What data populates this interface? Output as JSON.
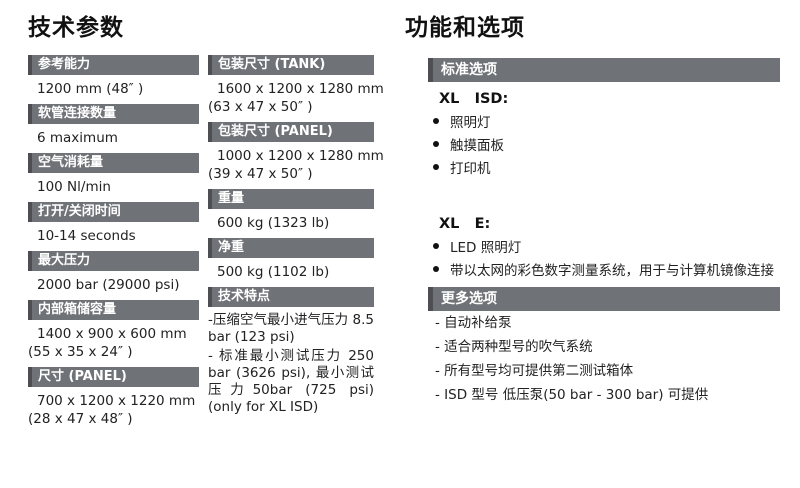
{
  "colors": {
    "bar_background": "#6f7277",
    "bar_left_edge": "#4d4f53",
    "bar_text": "#ffffff",
    "body_text": "#1a1a1a",
    "page_background": "#ffffff"
  },
  "left_section": {
    "title": "技术参数",
    "column_a": [
      {
        "label": "参考能力",
        "lines": [
          "1200 mm (48″ )"
        ]
      },
      {
        "label": "软管连接数量",
        "lines": [
          "6 maximum"
        ]
      },
      {
        "label": "空气消耗量",
        "lines": [
          "100 Nl/min"
        ]
      },
      {
        "label": "打开/关闭时间",
        "lines": [
          "10-14 seconds"
        ]
      },
      {
        "label": "最大压力",
        "lines": [
          "2000 bar (29000 psi)"
        ]
      },
      {
        "label": "内部箱储容量",
        "lines": [
          "1400 x 900 x 600 mm",
          "(55 x 35 x 24″ )"
        ]
      },
      {
        "label": "尺寸 (PANEL)",
        "lines": [
          "700 x 1200 x 1220 mm",
          "(28 x 47 x 48″ )"
        ]
      }
    ],
    "column_b": [
      {
        "label": "包装尺寸 (TANK)",
        "lines": [
          "1600 x 1200 x 1280 mm",
          "(63 x 47 x 50″ )"
        ]
      },
      {
        "label": "包装尺寸 (PANEL)",
        "lines": [
          "1000 x 1200 x 1280 mm",
          "(39 x 47 x 50″ )"
        ]
      },
      {
        "label": "重量",
        "lines": [
          "600 kg (1323 lb)"
        ]
      },
      {
        "label": "净重",
        "lines": [
          "500 kg  (1102 lb)"
        ]
      },
      {
        "label": "技术特点",
        "paragraphs": [
          "-压缩空气最小进气压力 8.5 bar (123 psi)",
          "- 标准最小测试压力 250 bar (3626 psi), 最小测试压力50bar (725 psi) (only for XL ISD)"
        ]
      }
    ]
  },
  "right_section": {
    "title": "功能和选项",
    "standard_options": {
      "header": "标准选项",
      "groups": [
        {
          "model": "XL   ISD:",
          "items": [
            "照明灯",
            "触摸面板",
            "打印机"
          ]
        },
        {
          "model": "XL   E:",
          "items": [
            "LED 照明灯",
            "带以太网的彩色数字测量系统，用于与计算机镜像连接"
          ]
        }
      ]
    },
    "more_options": {
      "header": "更多选项",
      "items": [
        "- 自动补给泵",
        "- 适合两种型号的吹气系统",
        "- 所有型号均可提供第二测试箱体",
        "- ISD 型号 低压泵(50 bar - 300 bar) 可提供"
      ]
    }
  }
}
